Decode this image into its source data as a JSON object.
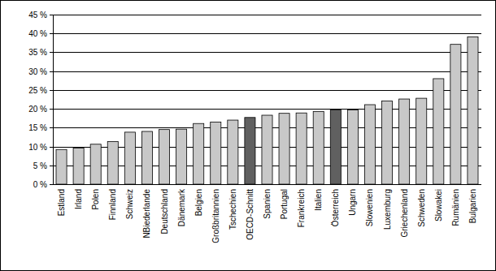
{
  "chart_data": {
    "type": "bar",
    "categories": [
      "Estland",
      "Irland",
      "Polen",
      "Finnland",
      "Schweiz",
      "NBiederlande",
      "Deutschland",
      "Dänemark",
      "Belgien",
      "Großbritannien",
      "Tschechien",
      "OECD-Schnitt",
      "Spanien",
      "Portugal",
      "Frankreich",
      "Italien",
      "Österreich",
      "Ungarn",
      "Slowenien",
      "Luxemburg",
      "Griechenland",
      "Schweden",
      "Slowakei",
      "Rumänien",
      "Bulgarien"
    ],
    "values": [
      9.2,
      9.6,
      10.6,
      11.3,
      13.8,
      14.0,
      14.5,
      14.6,
      16.1,
      16.5,
      17.0,
      17.7,
      18.3,
      18.8,
      18.9,
      19.3,
      19.7,
      19.7,
      21.1,
      22.1,
      22.6,
      22.8,
      28.0,
      37.1,
      39.1
    ],
    "colors": [
      "#c8c8c8",
      "#c8c8c8",
      "#c8c8c8",
      "#c8c8c8",
      "#c8c8c8",
      "#c8c8c8",
      "#c8c8c8",
      "#c8c8c8",
      "#c8c8c8",
      "#c8c8c8",
      "#c8c8c8",
      "#606060",
      "#c8c8c8",
      "#c8c8c8",
      "#c8c8c8",
      "#c8c8c8",
      "#606060",
      "#c8c8c8",
      "#c8c8c8",
      "#c8c8c8",
      "#c8c8c8",
      "#c8c8c8",
      "#c8c8c8",
      "#c8c8c8",
      "#c8c8c8"
    ],
    "ylim": [
      0,
      45
    ],
    "yticks": [
      {
        "value": 0,
        "label": "0 %"
      },
      {
        "value": 5,
        "label": "5 %"
      },
      {
        "value": 10,
        "label": "10 %"
      },
      {
        "value": 15,
        "label": "15 %"
      },
      {
        "value": 20,
        "label": "20 %"
      },
      {
        "value": 25,
        "label": "25 %"
      },
      {
        "value": 30,
        "label": "30 %"
      },
      {
        "value": 35,
        "label": "35 %"
      },
      {
        "value": 40,
        "label": "40 %"
      },
      {
        "value": 45,
        "label": "45 %"
      }
    ],
    "grid": true
  }
}
